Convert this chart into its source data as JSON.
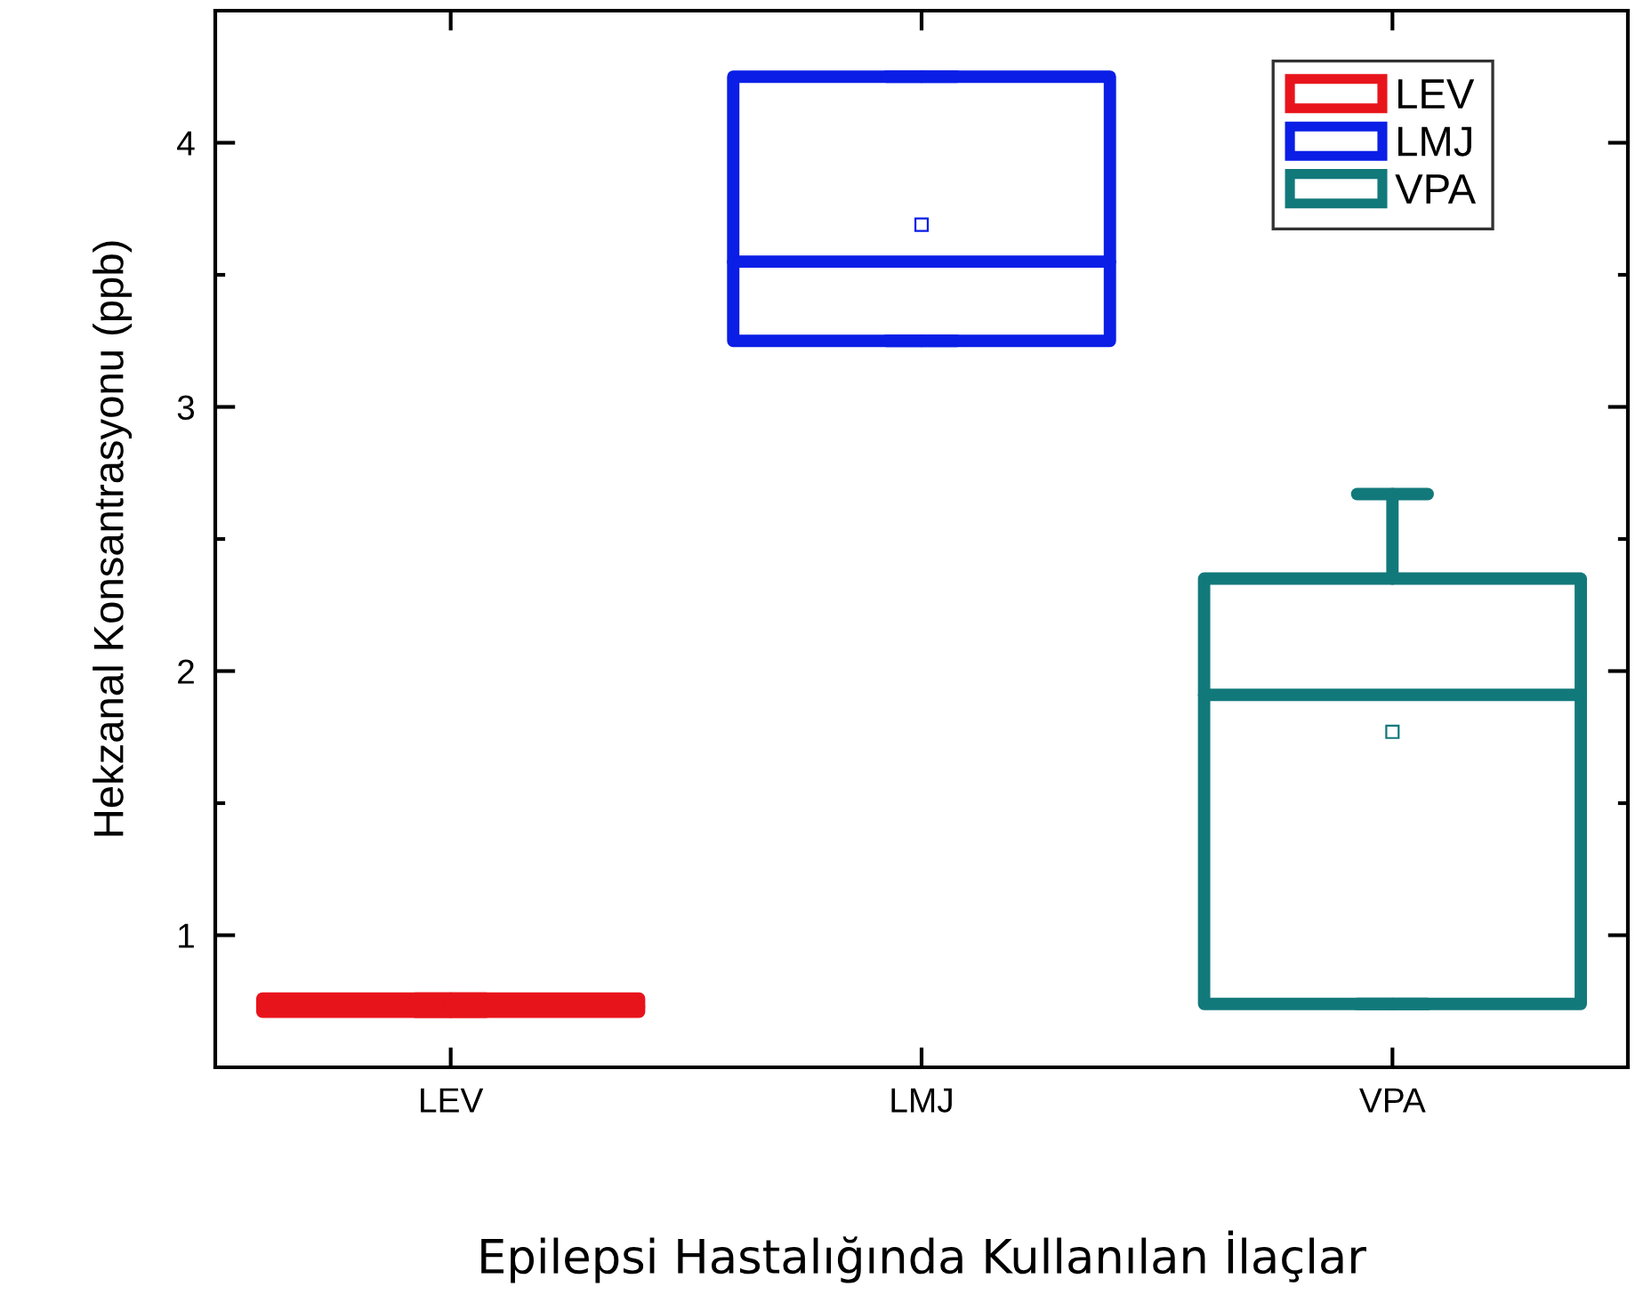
{
  "chart_data": {
    "type": "box",
    "xlabel": "Epilepsi Hastalığında Kullanılan İlaçlar",
    "ylabel": "Hekzanal Konsantrasyonu (ppb)",
    "categories": [
      "LEV",
      "LMJ",
      "VPA"
    ],
    "series": [
      {
        "name": "LEV",
        "color": "#e8141b",
        "boxes": [
          {
            "low": 0.71,
            "q1": 0.71,
            "median": 0.73,
            "q3": 0.76,
            "high": 0.76,
            "mean": 0.73
          },
          null,
          null
        ]
      },
      {
        "name": "LMJ",
        "color": "#0a1ee6",
        "boxes": [
          null,
          {
            "low": 3.25,
            "q1": 3.25,
            "median": 3.55,
            "q3": 4.25,
            "high": 4.25,
            "mean": 3.69
          },
          null
        ]
      },
      {
        "name": "VPA",
        "color": "#12797b",
        "boxes": [
          null,
          null,
          {
            "low": 0.74,
            "q1": 0.74,
            "median": 1.91,
            "q3": 2.35,
            "high": 2.67,
            "mean": 1.77
          }
        ]
      }
    ],
    "ylim": [
      0.5,
      4.5
    ],
    "yticks": [
      1,
      {
        "value": 1.5,
        "label": null
      },
      2,
      {
        "value": 2.5,
        "label": null
      },
      3,
      {
        "value": 3.5,
        "label": null
      },
      4
    ],
    "legend": "top right",
    "grid": false,
    "marker": "square"
  }
}
